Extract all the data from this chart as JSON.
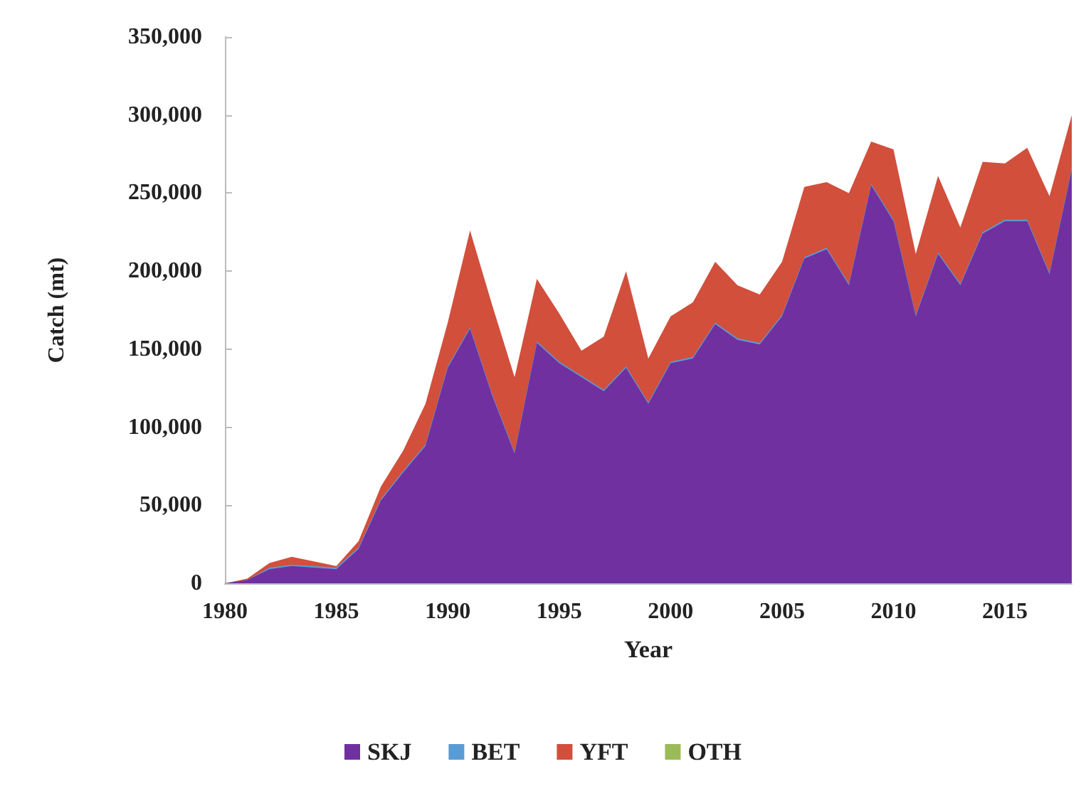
{
  "chart_data": {
    "type": "area",
    "stacked": true,
    "xlabel": "Year",
    "ylabel": "Catch (mt)",
    "x": [
      1980,
      1981,
      1982,
      1983,
      1984,
      1985,
      1986,
      1987,
      1988,
      1989,
      1990,
      1991,
      1992,
      1993,
      1994,
      1995,
      1996,
      1997,
      1998,
      1999,
      2000,
      2001,
      2002,
      2003,
      2004,
      2005,
      2006,
      2007,
      2008,
      2009,
      2010,
      2011,
      2012,
      2013,
      2014,
      2015,
      2016,
      2017,
      2018
    ],
    "xlim": [
      1980,
      2018
    ],
    "xticks": [
      1980,
      1985,
      1990,
      1995,
      2000,
      2005,
      2010,
      2015
    ],
    "ylim": [
      0,
      350000
    ],
    "yticks": [
      0,
      {
        "value": 50000,
        "label": "50,000"
      },
      {
        "value": 100000,
        "label": "100,000"
      },
      {
        "value": 150000,
        "label": "150,000"
      },
      {
        "value": 200000,
        "label": "200,000"
      },
      {
        "value": 250000,
        "label": "250,000"
      },
      {
        "value": 300000,
        "label": "300,000"
      },
      {
        "value": 350000,
        "label": "350,000"
      }
    ],
    "series": [
      {
        "name": "SKJ",
        "color": "#7030a0",
        "values": [
          0,
          2000,
          9000,
          11000,
          10000,
          9000,
          22000,
          53000,
          71000,
          88000,
          138000,
          163000,
          120000,
          83000,
          154000,
          141000,
          132000,
          123000,
          138000,
          115000,
          141000,
          144000,
          166000,
          156000,
          153000,
          171000,
          208000,
          214000,
          191000,
          255000,
          232000,
          171000,
          211000,
          191000,
          224000,
          232000,
          232000,
          198000,
          265000
        ]
      },
      {
        "name": "BET",
        "color": "#5b9bd5",
        "values": [
          0,
          0,
          1000,
          1000,
          1000,
          1000,
          1000,
          1000,
          1000,
          1000,
          1000,
          1000,
          1000,
          1000,
          1000,
          1000,
          1000,
          1000,
          1000,
          1000,
          1000,
          1000,
          1000,
          1000,
          1000,
          1000,
          1000,
          1000,
          1000,
          1000,
          1000,
          1000,
          1000,
          1000,
          1000,
          1000,
          1000,
          1000,
          1000
        ]
      },
      {
        "name": "YFT",
        "color": "#d24f3c",
        "values": [
          0,
          1000,
          3000,
          5000,
          3000,
          1000,
          4000,
          8000,
          13000,
          26000,
          28000,
          62000,
          57000,
          48000,
          40000,
          31000,
          16000,
          34000,
          61000,
          28000,
          29000,
          35000,
          39000,
          34000,
          31000,
          34000,
          45000,
          42000,
          58000,
          27000,
          45000,
          39000,
          49000,
          36000,
          45000,
          36000,
          46000,
          49000,
          34000
        ]
      },
      {
        "name": "OTH",
        "color": "#9bbb59",
        "values": [
          null,
          null,
          null,
          null,
          null,
          null,
          null,
          null,
          null,
          null,
          null,
          null,
          null,
          null,
          null,
          null,
          null,
          null,
          null,
          null,
          null,
          null,
          null,
          null,
          null,
          null,
          null,
          null,
          null,
          null,
          null,
          null,
          null,
          null,
          null,
          null,
          null,
          null,
          null
        ]
      }
    ],
    "grid": false,
    "legend": "bottom"
  }
}
